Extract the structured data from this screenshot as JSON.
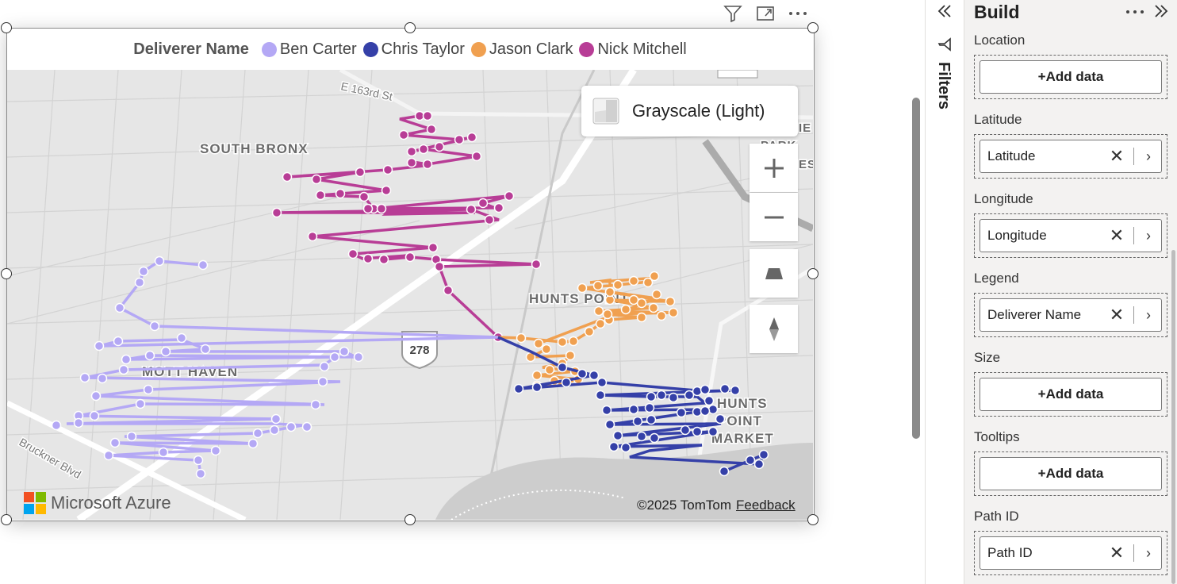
{
  "visual": {
    "header_icons": [
      "filter-icon",
      "focus-mode-icon",
      "more-options-icon"
    ],
    "legend": {
      "title": "Deliverer Name",
      "items": [
        {
          "label": "Ben Carter",
          "color": "#b4a8f5"
        },
        {
          "label": "Chris Taylor",
          "color": "#3540a8"
        },
        {
          "label": "Jason Clark",
          "color": "#f0a050"
        },
        {
          "label": "Nick Mitchell",
          "color": "#b83d96"
        }
      ]
    },
    "map": {
      "style_label": "Grayscale (Light)",
      "place_labels": [
        "SOUTH BRONX",
        "HUNTS POINT",
        "MOTT HAVEN",
        "HUNTS",
        "POINT",
        "MARKET",
        "E 163rd St",
        "Bruckner Blvd",
        "278",
        "IE",
        "PARK",
        "ES"
      ],
      "controls": [
        "zoom-in-icon",
        "zoom-out-icon",
        "pitch-icon",
        "compass-icon"
      ],
      "brand": "Microsoft Azure",
      "copyright": "©2025 TomTom",
      "feedback": "Feedback"
    }
  },
  "filters_pane": {
    "label": "Filters"
  },
  "build_pane": {
    "title": "Build",
    "wells": [
      {
        "label": "Location",
        "value": "+Add data",
        "filled": false
      },
      {
        "label": "Latitude",
        "value": "Latitude",
        "filled": true
      },
      {
        "label": "Longitude",
        "value": "Longitude",
        "filled": true
      },
      {
        "label": "Legend",
        "value": "Deliverer Name",
        "filled": true
      },
      {
        "label": "Size",
        "value": "+Add data",
        "filled": false
      },
      {
        "label": "Tooltips",
        "value": "+Add data",
        "filled": false
      },
      {
        "label": "Path ID",
        "value": "Path ID",
        "filled": true
      }
    ]
  }
}
